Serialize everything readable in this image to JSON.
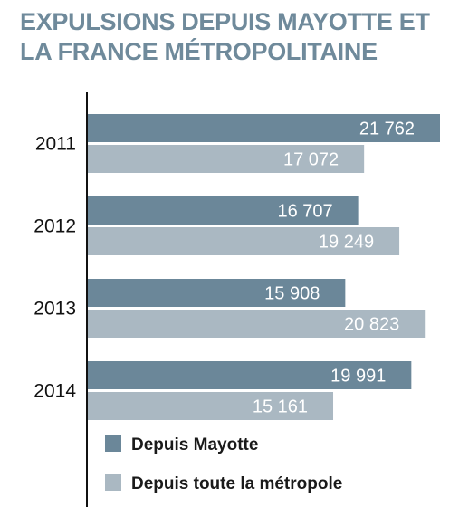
{
  "title_lines": [
    "EXPULSIONS DEPUIS MAYOTTE ET",
    "LA FRANCE MÉTROPOLITAINE"
  ],
  "colors": {
    "mayotte": "#6b8799",
    "metropole": "#aab8c2",
    "title": "#6f8a9b"
  },
  "chart_data": {
    "type": "bar",
    "orientation": "horizontal",
    "title": "EXPULSIONS DEPUIS MAYOTTE ET LA FRANCE MÉTROPOLITAINE",
    "categories": [
      "2011",
      "2012",
      "2013",
      "2014"
    ],
    "series": [
      {
        "name": "Depuis Mayotte",
        "values": [
          21762,
          16707,
          15908,
          19991
        ],
        "labels": [
          "21 762",
          "16 707",
          "15 908",
          "19 991"
        ]
      },
      {
        "name": "Depuis toute la métropole",
        "values": [
          17072,
          19249,
          20823,
          15161
        ],
        "labels": [
          "17 072",
          "19 249",
          "20 823",
          "15 161"
        ]
      }
    ],
    "xlim": [
      0,
      21762
    ],
    "grid": false,
    "legend_position": "bottom"
  }
}
